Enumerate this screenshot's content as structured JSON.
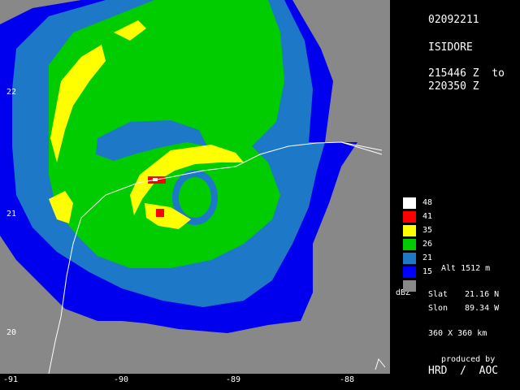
{
  "header": {
    "date_code": "02092211",
    "storm_name": "ISIDORE",
    "time_line1": "215446 Z  to",
    "time_line2": "220350 Z"
  },
  "legend": {
    "unit": "dBZ",
    "levels": [
      {
        "value": "48",
        "color": "#ffffff"
      },
      {
        "value": "41",
        "color": "#ff0000"
      },
      {
        "value": "35",
        "color": "#ffff00"
      },
      {
        "value": "26",
        "color": "#00cc00"
      },
      {
        "value": "21",
        "color": "#1e78c8"
      },
      {
        "value": "15",
        "color": "#0000ff"
      },
      {
        "value": "",
        "color": "#888888"
      }
    ],
    "alt_label": "Alt   1512 m"
  },
  "position": {
    "slat_label": "Slat",
    "slat_value": "21.16 N",
    "slon_label": "Slon",
    "slon_value": "89.34 W",
    "domain_size": "360 X 360 km"
  },
  "credits": {
    "produced_by": "produced by",
    "org": "HRD  /  AOC"
  },
  "lat_ticks": [
    "22",
    "21",
    "20"
  ],
  "lon_ticks": [
    "-91",
    "-90",
    "-89",
    "-88"
  ]
}
